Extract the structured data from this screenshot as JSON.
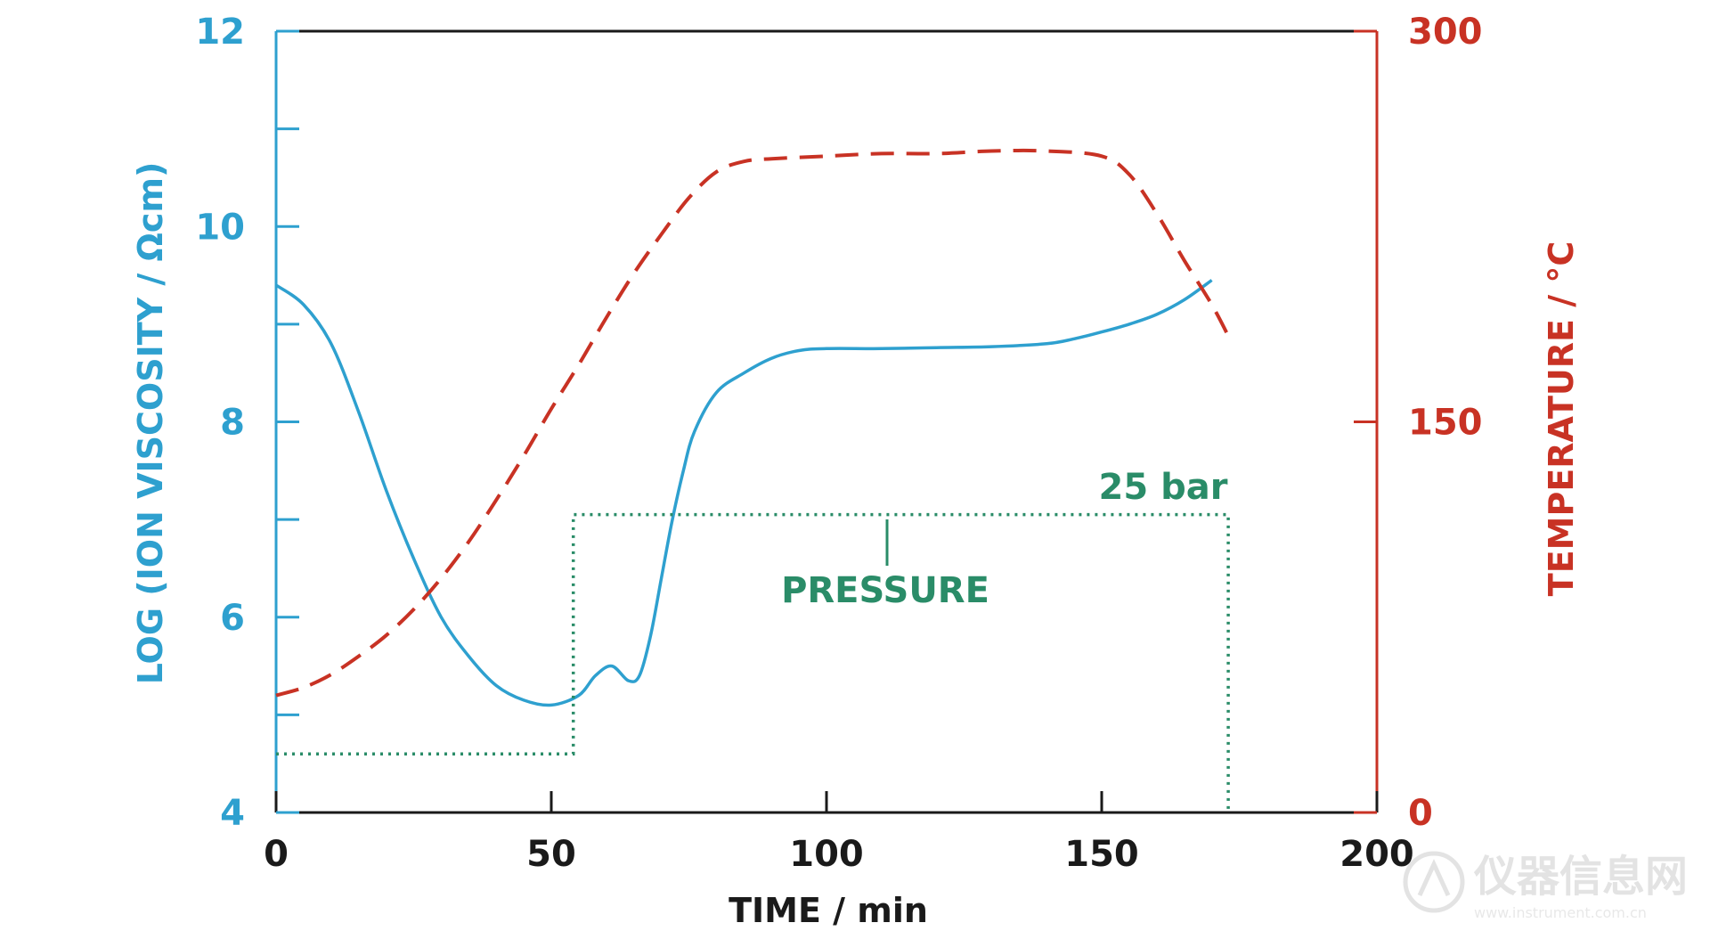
{
  "chart_data": {
    "type": "line",
    "title": "",
    "xlabel": "TIME / min",
    "ylabel_left": "LOG (ION VISCOSITY / Ωcm)",
    "ylabel_right": "TEMPERATURE / °C",
    "xlim": [
      0,
      200
    ],
    "ylim_left": [
      4,
      12
    ],
    "ylim_right": [
      0,
      300
    ],
    "x_ticks": [
      "0",
      "50",
      "100",
      "150",
      "200"
    ],
    "y_left_ticks": [
      "4",
      "6",
      "8",
      "10",
      "12"
    ],
    "y_right_ticks": [
      "0",
      "150",
      "300"
    ],
    "grid": false,
    "colors": {
      "viscosity": "#2ea0cf",
      "temperature": "#c83224",
      "pressure": "#2a8c68",
      "axis": "#1a1a1a"
    },
    "series": [
      {
        "key": "viscosity",
        "axis": "left",
        "style": "solid",
        "x": [
          0,
          5,
          10,
          15,
          20,
          25,
          30,
          35,
          40,
          45,
          50,
          55,
          58,
          61,
          64,
          66,
          68,
          70,
          72,
          74,
          76,
          80,
          85,
          90,
          95,
          100,
          110,
          120,
          130,
          140,
          145,
          150,
          155,
          160,
          165,
          170
        ],
        "y": [
          9.4,
          9.2,
          8.8,
          8.1,
          7.3,
          6.6,
          6.0,
          5.6,
          5.3,
          5.15,
          5.1,
          5.2,
          5.4,
          5.5,
          5.35,
          5.4,
          5.8,
          6.4,
          7.0,
          7.5,
          7.9,
          8.3,
          8.5,
          8.65,
          8.73,
          8.75,
          8.75,
          8.76,
          8.77,
          8.8,
          8.85,
          8.92,
          9.0,
          9.1,
          9.25,
          9.45
        ]
      },
      {
        "key": "temperature",
        "axis": "right",
        "style": "dashed",
        "x": [
          0,
          5,
          10,
          15,
          20,
          25,
          30,
          35,
          40,
          45,
          50,
          55,
          60,
          65,
          70,
          75,
          80,
          85,
          90,
          100,
          110,
          120,
          130,
          140,
          150,
          155,
          160,
          165,
          170,
          173
        ],
        "y": [
          45,
          48,
          53,
          60,
          68,
          78,
          90,
          104,
          120,
          137,
          155,
          172,
          190,
          207,
          222,
          236,
          246,
          250,
          251,
          252,
          253,
          253,
          254,
          254,
          252,
          245,
          230,
          212,
          195,
          183
        ]
      },
      {
        "key": "pressure",
        "axis": "left",
        "style": "dotted",
        "x": [
          0,
          54,
          54,
          173,
          173
        ],
        "y": [
          4.6,
          4.6,
          7.05,
          7.05,
          4
        ]
      }
    ],
    "annotations": {
      "pressure_label": "PRESSURE",
      "pressure_value": "25 bar"
    }
  },
  "watermark": {
    "text": "仪器信息网",
    "subtext": "www.instrument.com.cn"
  }
}
